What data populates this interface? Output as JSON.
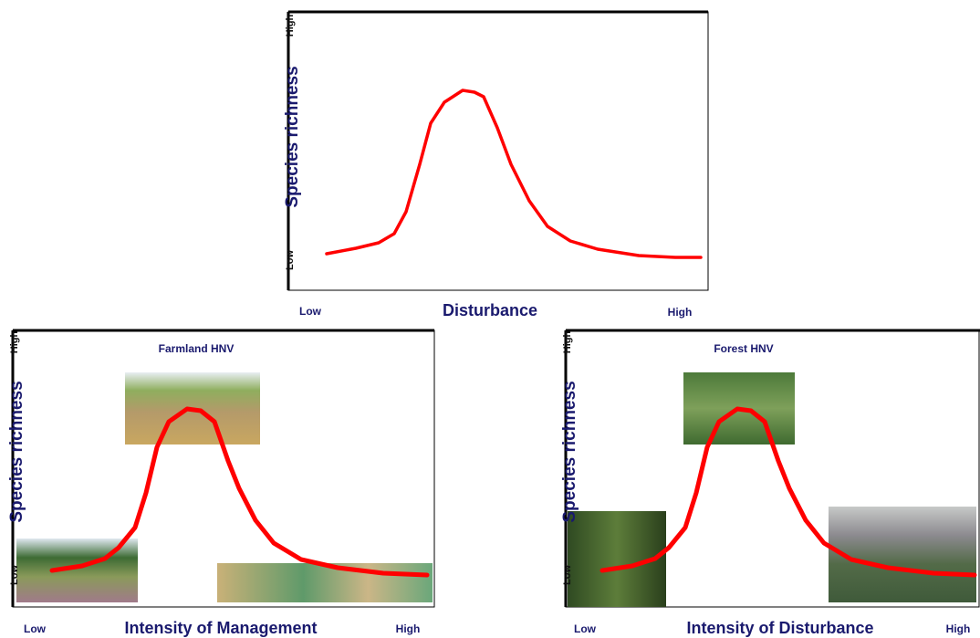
{
  "panels": [
    {
      "y_label": "Species richness",
      "y_high": "High",
      "y_low": "Low",
      "x_low": "Low",
      "x_label": "Disturbance",
      "x_high": "High"
    },
    {
      "title": "Farmland HNV",
      "y_label": "Species richness",
      "y_high": "High",
      "y_low": "Low",
      "x_low": "Low",
      "x_label": "Intensity of Management",
      "x_high": "High"
    },
    {
      "title": "Forest HNV",
      "y_label": "Species richness",
      "y_high": "High",
      "y_low": "Low",
      "x_low": "Low",
      "x_label": "Intensity of Disturbance",
      "x_high": "High"
    }
  ]
}
